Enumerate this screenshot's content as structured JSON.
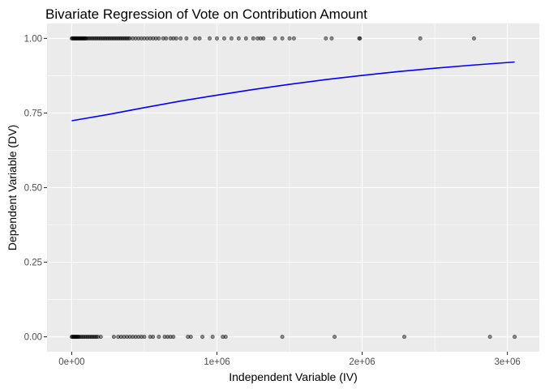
{
  "chart_data": {
    "type": "scatter",
    "title": "Bivariate Regression of Vote on Contribution Amount",
    "xlabel": "Independent Variable (IV)",
    "ylabel": "Dependent Variable (DV)",
    "xlim": [
      -170000,
      3220000
    ],
    "ylim": [
      -0.05,
      1.05
    ],
    "x_ticks": [
      0,
      1000000,
      2000000,
      3000000
    ],
    "x_tick_labels": [
      "0e+00",
      "1e+06",
      "2e+06",
      "3e+06"
    ],
    "y_ticks": [
      0,
      0.25,
      0.5,
      0.75,
      1
    ],
    "y_tick_labels": [
      "0.00",
      "0.25",
      "0.50",
      "0.75",
      "1.00"
    ],
    "grid": true,
    "background": "#ebebeb",
    "grid_color": "#ffffff",
    "point_color": "#000000",
    "point_opacity": 0.45,
    "points": {
      "y1_x": [
        0,
        5000,
        10000,
        15000,
        20000,
        25000,
        30000,
        35000,
        40000,
        45000,
        50000,
        55000,
        60000,
        65000,
        70000,
        75000,
        80000,
        85000,
        90000,
        95000,
        100000,
        110000,
        120000,
        130000,
        140000,
        150000,
        160000,
        170000,
        180000,
        190000,
        200000,
        210000,
        220000,
        230000,
        240000,
        250000,
        260000,
        270000,
        280000,
        290000,
        300000,
        310000,
        320000,
        330000,
        340000,
        350000,
        360000,
        370000,
        380000,
        390000,
        400000,
        420000,
        440000,
        460000,
        480000,
        500000,
        520000,
        540000,
        560000,
        580000,
        600000,
        630000,
        650000,
        680000,
        700000,
        720000,
        750000,
        790000,
        850000,
        880000,
        950000,
        1000000,
        1050000,
        1100000,
        1150000,
        1200000,
        1250000,
        1280000,
        1300000,
        1320000,
        1400000,
        1450000,
        1500000,
        1530000,
        1750000,
        1790000,
        1980000,
        1985000,
        2400000,
        2770000
      ],
      "y0_x": [
        0,
        5000,
        10000,
        15000,
        20000,
        25000,
        30000,
        35000,
        40000,
        45000,
        50000,
        60000,
        70000,
        80000,
        90000,
        100000,
        110000,
        120000,
        130000,
        140000,
        150000,
        160000,
        170000,
        180000,
        200000,
        290000,
        320000,
        340000,
        360000,
        380000,
        400000,
        420000,
        440000,
        460000,
        480000,
        500000,
        540000,
        560000,
        600000,
        640000,
        660000,
        680000,
        700000,
        800000,
        820000,
        900000,
        970000,
        1040000,
        1060000,
        1450000,
        1810000,
        2290000,
        2880000,
        3050000
      ]
    },
    "fit": {
      "color": "#0000ff",
      "x": [
        0,
        250000,
        500000,
        750000,
        1000000,
        1250000,
        1500000,
        1750000,
        2000000,
        2250000,
        2500000,
        2750000,
        3050000
      ],
      "y": [
        0.724,
        0.745,
        0.768,
        0.79,
        0.81,
        0.829,
        0.846,
        0.862,
        0.876,
        0.889,
        0.9,
        0.91,
        0.921
      ]
    }
  }
}
